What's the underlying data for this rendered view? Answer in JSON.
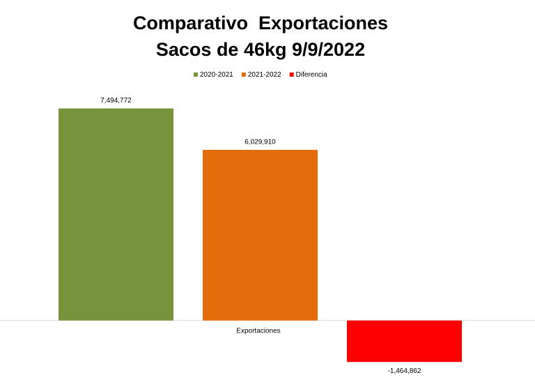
{
  "chart_data": {
    "type": "bar",
    "title": "Comparativo  Exportaciones",
    "subtitle": "Sacos de 46kg 9/9/2022",
    "categories": [
      "Exportaciones"
    ],
    "series": [
      {
        "name": "2020-2021",
        "color": "#77933c",
        "values": [
          7494772
        ],
        "value_labels": [
          "7,494,772"
        ]
      },
      {
        "name": "2021-2022",
        "color": "#e46c0a",
        "values": [
          6029910
        ],
        "value_labels": [
          "6,029,910"
        ]
      },
      {
        "name": "Diferencia",
        "color": "#ff0000",
        "values": [
          -1464862
        ],
        "value_labels": [
          "-1,464,862"
        ]
      }
    ],
    "ylim": [
      -2000000,
      8000000
    ],
    "legend": "top"
  }
}
